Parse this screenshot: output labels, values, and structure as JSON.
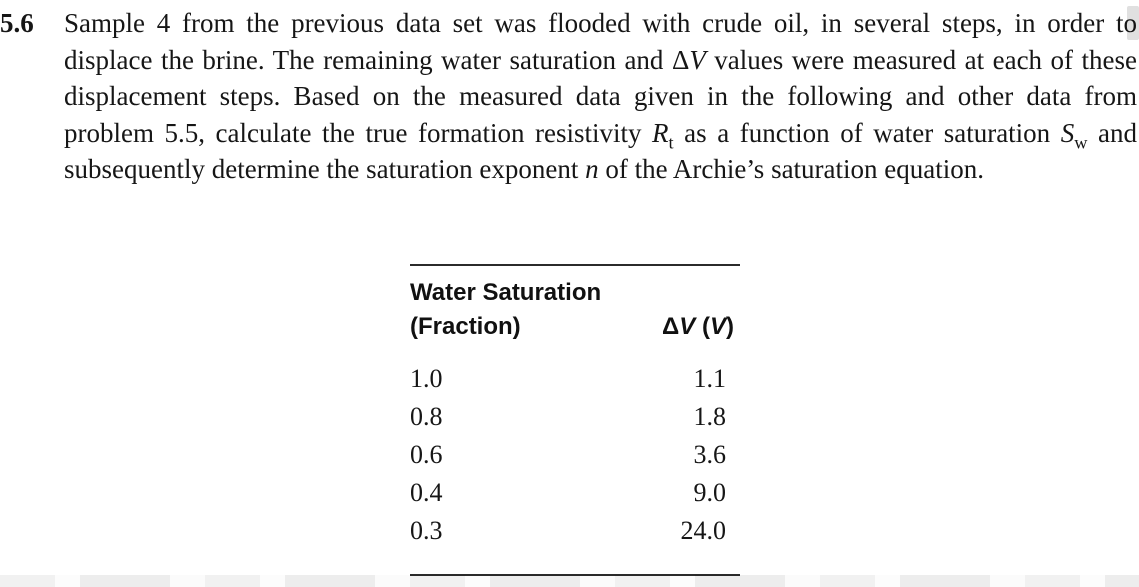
{
  "problem": {
    "number": "5.6",
    "segments": {
      "s1": "Sample 4 from the previous data set was flooded with crude oil, in several steps, in order to displace the brine. The remaining water saturation and ",
      "delta": "Δ",
      "v_italic": "V",
      "s2": " values were measured at each of these displacement steps. Based on the measured data given in the following and other data from problem 5.5, calculate the true formation resistivity ",
      "r_italic": "R",
      "r_sub": "t",
      "s3": " as a function of water saturation ",
      "s_italic": "S",
      "s_sub": "w",
      "s4": " and subsequently determine the saturation exponent ",
      "n_italic": "n",
      "s5": " of the Archie’s saturation equation."
    }
  },
  "table": {
    "col1_header_line1": "Water Saturation",
    "col1_header_line2": "(Fraction)",
    "col2_header": {
      "delta": "Δ",
      "v": "V",
      "open_paren": " (",
      "v_unit": "V",
      "close_paren": ")"
    },
    "rows": [
      {
        "sw": "1.0",
        "dv": "1.1"
      },
      {
        "sw": "0.8",
        "dv": "1.8"
      },
      {
        "sw": "0.6",
        "dv": "3.6"
      },
      {
        "sw": "0.4",
        "dv": "9.0"
      },
      {
        "sw": "0.3",
        "dv": "24.0"
      }
    ]
  }
}
